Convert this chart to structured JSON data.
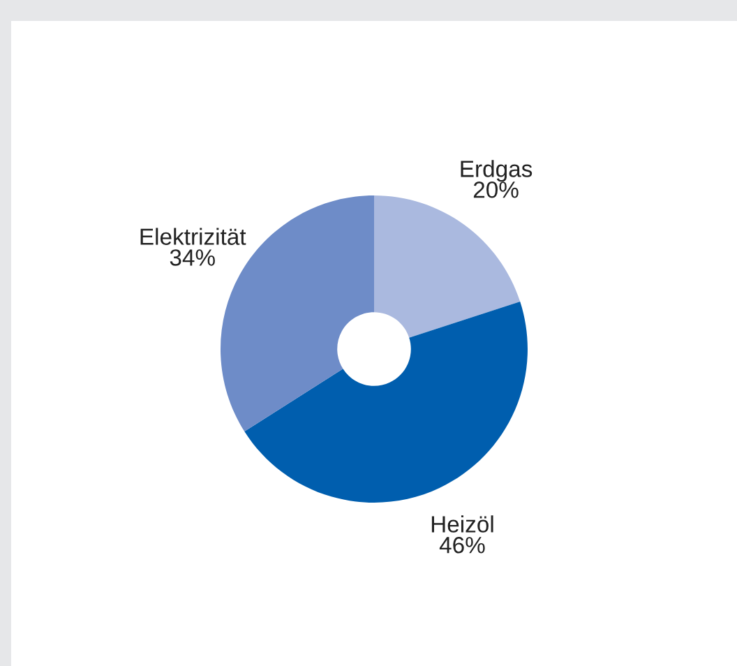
{
  "chart_data": {
    "type": "donut",
    "categories": [
      "Erdgas",
      "Heizöl",
      "Elektrizität"
    ],
    "values": [
      20,
      46,
      34
    ],
    "colors": [
      "#aab9df",
      "#005eae",
      "#6e8cc8"
    ],
    "value_labels": [
      "20%",
      "46%",
      "34%"
    ],
    "legend": false
  }
}
